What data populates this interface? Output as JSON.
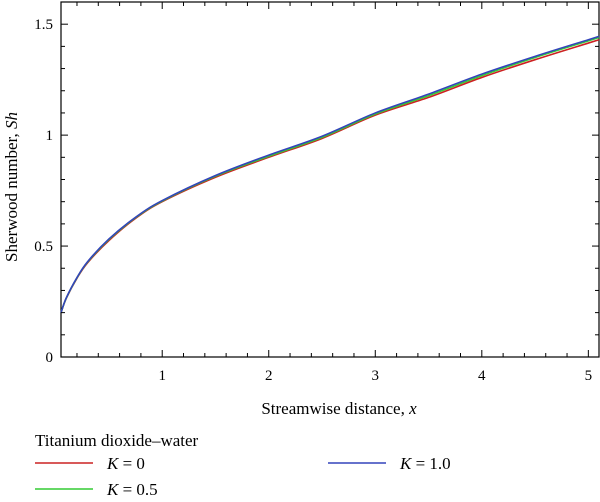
{
  "chart_data": {
    "type": "line",
    "xlabel_text": "Streamwise distance, ",
    "xlabel_var": "x",
    "ylabel_text": "Sherwood number, ",
    "ylabel_var": "Sh",
    "xlim": [
      0.05,
      5.1
    ],
    "ylim": [
      0,
      1.6
    ],
    "x_ticks": [
      1,
      2,
      3,
      4,
      5
    ],
    "x_tick_labels": [
      "1",
      "2",
      "3",
      "4",
      "5"
    ],
    "y_ticks": [
      0,
      0.5,
      1,
      1.5
    ],
    "y_tick_labels": [
      "0",
      "0.5",
      "1",
      "1.5"
    ],
    "grid": false,
    "legend": {
      "placement": "bottom",
      "title": "Titanium dioxide–water",
      "entries": [
        {
          "var": "K",
          "text": " = 0",
          "color": "#cc2222"
        },
        {
          "var": "K",
          "text": " = 1.0",
          "color": "#3344bb"
        },
        {
          "var": "K",
          "text": " = 0.5",
          "color": "#33cc33"
        }
      ]
    },
    "series": [
      {
        "name": "K = 0",
        "color": "#cc2222",
        "x": [
          0.05,
          0.1,
          0.2,
          0.3,
          0.5,
          0.75,
          1.0,
          1.5,
          2.0,
          2.5,
          3.0,
          3.5,
          4.0,
          4.5,
          5.0,
          5.1
        ],
        "y": [
          0.2,
          0.265,
          0.355,
          0.425,
          0.525,
          0.625,
          0.7,
          0.81,
          0.9,
          0.985,
          1.09,
          1.17,
          1.26,
          1.34,
          1.415,
          1.43
        ]
      },
      {
        "name": "K = 0.5",
        "color": "#33cc33",
        "x": [
          0.05,
          0.1,
          0.2,
          0.3,
          0.5,
          0.75,
          1.0,
          1.5,
          2.0,
          2.5,
          3.0,
          3.5,
          4.0,
          4.5,
          5.0,
          5.1
        ],
        "y": [
          0.2,
          0.266,
          0.357,
          0.428,
          0.53,
          0.628,
          0.703,
          0.815,
          0.905,
          0.99,
          1.095,
          1.178,
          1.268,
          1.35,
          1.425,
          1.44
        ]
      },
      {
        "name": "K = 1.0",
        "color": "#3344bb",
        "x": [
          0.05,
          0.1,
          0.2,
          0.3,
          0.5,
          0.75,
          1.0,
          1.5,
          2.0,
          2.5,
          3.0,
          3.5,
          4.0,
          4.5,
          5.0,
          5.1
        ],
        "y": [
          0.2,
          0.267,
          0.358,
          0.43,
          0.532,
          0.63,
          0.705,
          0.818,
          0.91,
          0.995,
          1.1,
          1.185,
          1.275,
          1.355,
          1.43,
          1.445
        ]
      }
    ]
  }
}
